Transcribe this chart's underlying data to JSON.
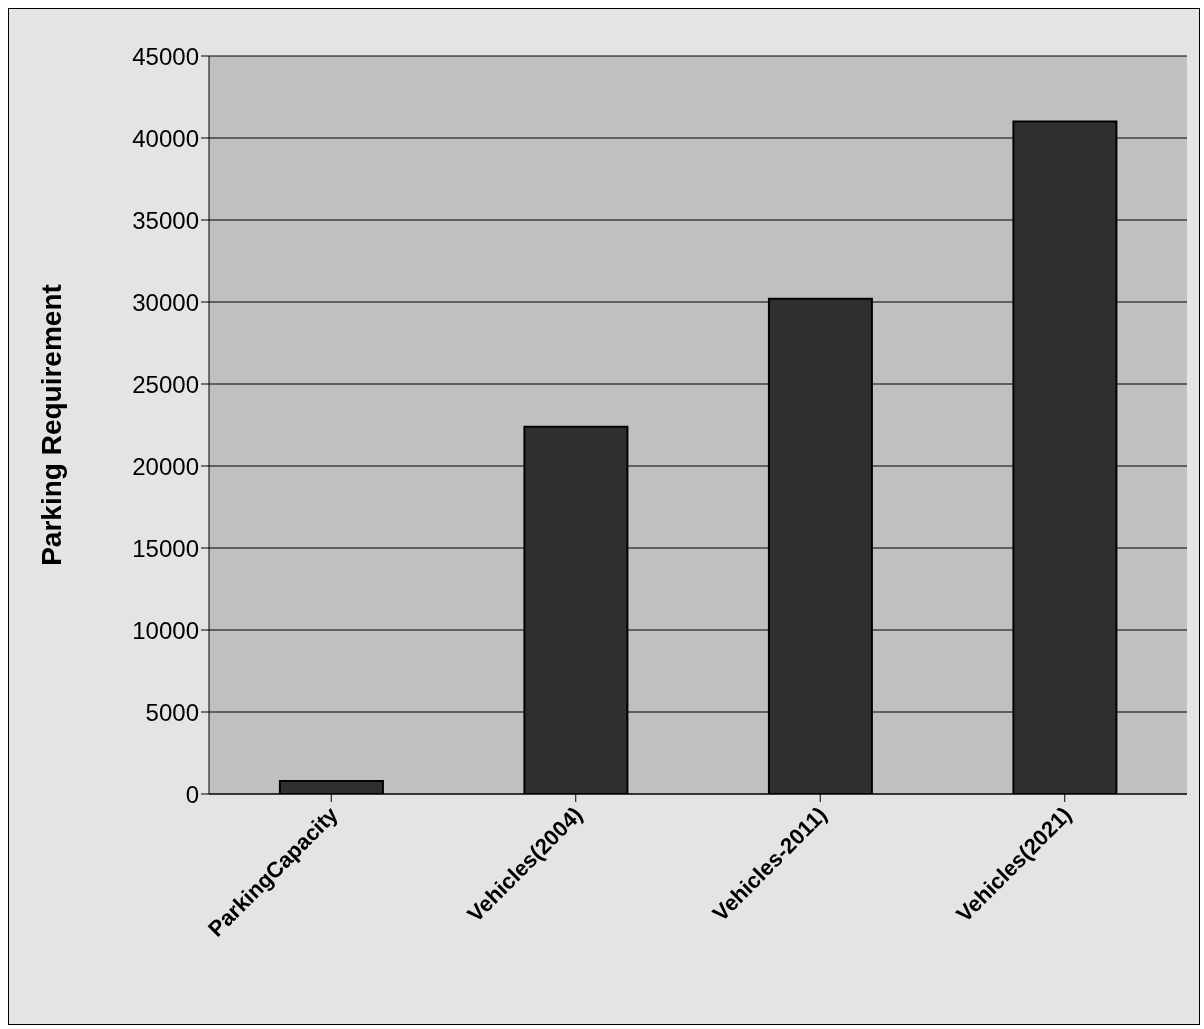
{
  "chart_data": {
    "type": "bar",
    "ylabel": "Parking Requirement",
    "categories": [
      "ParkingCapacity",
      "Vehicles(2004)",
      "Vehicles-2011)",
      "Vehicles(2021)"
    ],
    "values": [
      800,
      22400,
      30200,
      41000
    ],
    "color": "#2f2f2f",
    "ylim": [
      0,
      45000
    ],
    "yticks": [
      0,
      5000,
      10000,
      15000,
      20000,
      25000,
      30000,
      35000,
      40000,
      45000
    ],
    "grid": "y"
  }
}
